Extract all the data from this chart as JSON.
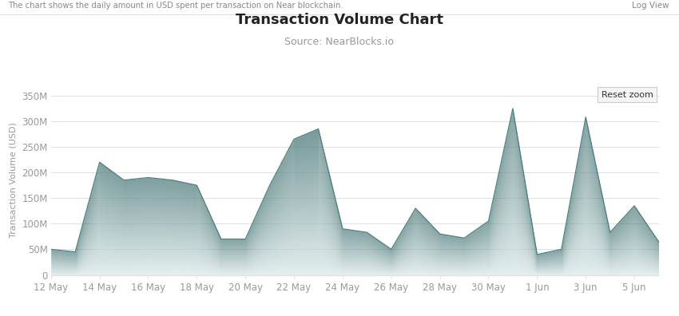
{
  "title": "Transaction Volume Chart",
  "subtitle": "Source: NearBlocks.io",
  "top_label": "The chart shows the daily amount in USD spent per transaction on Near blockchain.",
  "ylabel": "Transaction Volume (USD)",
  "background_color": "#ffffff",
  "plot_bg_color": "#ffffff",
  "line_color": "#4d7f7f",
  "fill_color_dark": "#4d7a7a",
  "fill_color_light": "#ddeaea",
  "ylim": [
    0,
    370000000
  ],
  "yticks": [
    0,
    50000000,
    100000000,
    150000000,
    200000000,
    250000000,
    300000000,
    350000000
  ],
  "ytick_labels": [
    "0",
    "50M",
    "100M",
    "150M",
    "200M",
    "250M",
    "300M",
    "350M"
  ],
  "values": [
    50000000,
    45000000,
    220000000,
    185000000,
    190000000,
    185000000,
    175000000,
    70000000,
    70000000,
    175000000,
    265000000,
    285000000,
    90000000,
    83000000,
    50000000,
    130000000,
    80000000,
    72000000,
    105000000,
    325000000,
    40000000,
    50000000,
    308000000,
    83000000,
    135000000,
    65000000
  ],
  "xtick_positions": [
    0,
    2,
    4,
    6,
    8,
    10,
    12,
    14,
    16,
    18,
    20,
    22,
    24
  ],
  "xtick_labels": [
    "12 May",
    "14 May",
    "16 May",
    "18 May",
    "20 May",
    "22 May",
    "24 May",
    "26 May",
    "28 May",
    "30 May",
    "1 Jun",
    "3 Jun",
    "5 Jun"
  ],
  "reset_zoom_text": "Reset zoom",
  "log_view_text": "Log View",
  "grid_color": "#e0e0e0",
  "tick_color": "#999999",
  "title_fontsize": 13,
  "subtitle_fontsize": 9,
  "axis_label_fontsize": 8,
  "tick_fontsize": 8.5
}
